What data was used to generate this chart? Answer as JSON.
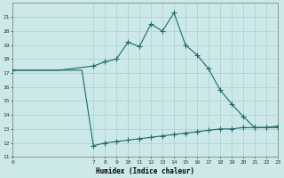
{
  "xlabel": "Humidex (Indice chaleur)",
  "bg_color": "#cce8e8",
  "grid_color": "#aed4d4",
  "line_color": "#1a6b6b",
  "line1_x": [
    0,
    1,
    2,
    3,
    4,
    5,
    6,
    7,
    8,
    9,
    10,
    11,
    12,
    13,
    14,
    15,
    16,
    17,
    18,
    19,
    20,
    21,
    22,
    23
  ],
  "line1_y": [
    17.2,
    17.2,
    17.2,
    17.2,
    17.2,
    17.3,
    17.4,
    17.5,
    17.8,
    18.0,
    19.2,
    18.9,
    20.5,
    20.0,
    21.3,
    19.0,
    18.3,
    17.3,
    15.8,
    14.8,
    13.9,
    13.1,
    13.1,
    13.1
  ],
  "line2_x": [
    0,
    1,
    2,
    3,
    4,
    5,
    6,
    7,
    8,
    9,
    10,
    11,
    12,
    13,
    14,
    15,
    16,
    17,
    18,
    19,
    20,
    21,
    22,
    23
  ],
  "line2_y": [
    17.2,
    17.2,
    17.2,
    17.2,
    17.2,
    17.2,
    17.2,
    11.8,
    12.0,
    12.1,
    12.2,
    12.3,
    12.4,
    12.5,
    12.6,
    12.7,
    12.8,
    12.9,
    13.0,
    13.0,
    13.1,
    13.1,
    13.1,
    13.2
  ],
  "xlim": [
    0,
    23
  ],
  "ylim": [
    11,
    22
  ],
  "xtick_positions": [
    0,
    7,
    8,
    9,
    10,
    11,
    12,
    13,
    14,
    15,
    16,
    17,
    18,
    19,
    20,
    21,
    22,
    23
  ],
  "xtick_labels": [
    "0",
    "7",
    "8",
    "9",
    "10",
    "11",
    "12",
    "13",
    "14",
    "15",
    "16",
    "17",
    "18",
    "19",
    "20",
    "21",
    "22",
    "23"
  ],
  "ytick_positions": [
    11,
    12,
    13,
    14,
    15,
    16,
    17,
    18,
    19,
    20,
    21
  ],
  "ytick_labels": [
    "11",
    "12",
    "13",
    "14",
    "15",
    "16",
    "17",
    "18",
    "19",
    "20",
    "21"
  ],
  "marker1_x": [
    0,
    7,
    8,
    9,
    10,
    11,
    12,
    13,
    14,
    15,
    16,
    17,
    18,
    19,
    20,
    21,
    22,
    23
  ],
  "marker1_y": [
    17.2,
    17.5,
    17.8,
    18.0,
    19.2,
    18.9,
    20.5,
    20.0,
    21.3,
    19.0,
    18.3,
    17.3,
    15.8,
    14.8,
    13.9,
    13.1,
    13.1,
    13.1
  ],
  "marker2_x": [
    7,
    8,
    9,
    10,
    11,
    12,
    13,
    14,
    15,
    16,
    17,
    18,
    19,
    20,
    21,
    22,
    23
  ],
  "marker2_y": [
    11.8,
    12.0,
    12.1,
    12.2,
    12.3,
    12.4,
    12.5,
    12.6,
    12.7,
    12.8,
    12.9,
    13.0,
    13.0,
    13.1,
    13.1,
    13.1,
    13.2
  ]
}
